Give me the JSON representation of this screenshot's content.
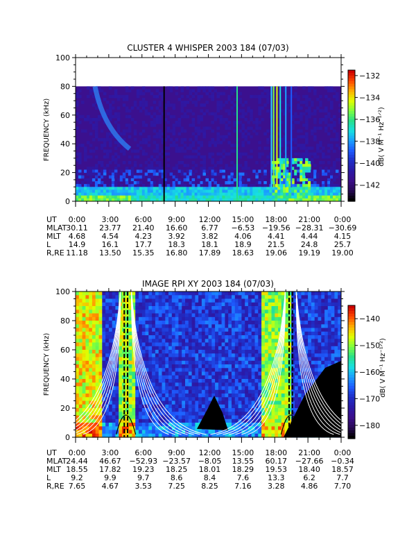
{
  "chart_data": [
    {
      "type": "heatmap",
      "title": "CLUSTER 4 WHISPER 2003 184 (07/03)",
      "ylabel": "FREQUENCY (kHz)",
      "ylim": [
        0,
        100
      ],
      "yticks": [
        "0",
        "20",
        "40",
        "60",
        "80",
        "100"
      ],
      "y_values": [
        0,
        20,
        40,
        60,
        80,
        100
      ],
      "data_ceiling_khz": 80,
      "colorbar": {
        "label": "dB( V M⁻¹ Hz⁻¹ᐟ²)",
        "range": [
          -143.5,
          -131.5
        ],
        "ticks": [
          "-132",
          "-134",
          "-136",
          "-138",
          "-140",
          "-142"
        ],
        "tick_values": [
          -132,
          -134,
          -136,
          -138,
          -140,
          -142
        ],
        "colormap": [
          "#000000",
          "#2a0a5a",
          "#3c0f8c",
          "#2b1aa8",
          "#1f2fc8",
          "#1e5cff",
          "#1aa0ff",
          "#17e0e0",
          "#27e08a",
          "#7dff40",
          "#e0ff00",
          "#ffb000",
          "#ff4800",
          "#cc0000"
        ]
      },
      "ephemeris": {
        "row_labels": [
          "UT",
          "MLAT",
          "MLT",
          "L",
          "R,RE"
        ],
        "columns": [
          [
            "0:00",
            "30.11",
            "4.68",
            "14.9",
            "11.18"
          ],
          [
            "3:00",
            "23.77",
            "4.54",
            "16.1",
            "13.50"
          ],
          [
            "6:00",
            "21.40",
            "4.23",
            "17.7",
            "15.35"
          ],
          [
            "9:00",
            "16.60",
            "3.92",
            "18.3",
            "16.80"
          ],
          [
            "12:00",
            "6.77",
            "3.82",
            "18.1",
            "17.89"
          ],
          [
            "15:00",
            "-6.53",
            "4.06",
            "18.9",
            "18.63"
          ],
          [
            "18:00",
            "-19.56",
            "4.41",
            "21.5",
            "19.06"
          ],
          [
            "21:00",
            "-28.31",
            "4.44",
            "24.8",
            "19.19"
          ],
          [
            "0:00",
            "-30.69",
            "4.15",
            "25.7",
            "19.00"
          ]
        ]
      }
    },
    {
      "type": "heatmap",
      "title": "IMAGE RPI XY 2003 184 (07/03)",
      "ylabel": "FREQUENCY (kHz)",
      "ylim": [
        0,
        100
      ],
      "yticks": [
        "0",
        "20",
        "40",
        "60",
        "80",
        "100"
      ],
      "y_values": [
        0,
        20,
        40,
        60,
        80,
        100
      ],
      "colorbar": {
        "label": "dB( V M⁻¹ Hz⁻¹ᐟ²)",
        "range": [
          -185,
          -135
        ],
        "ticks": [
          "-140",
          "-150",
          "-160",
          "-170",
          "-180"
        ],
        "tick_values": [
          -140,
          -150,
          -160,
          -170,
          -180
        ],
        "colormap": [
          "#000000",
          "#2a0a5a",
          "#3c0f8c",
          "#2b1aa8",
          "#1f2fc8",
          "#1e5cff",
          "#1aa0ff",
          "#17e0e0",
          "#27e08a",
          "#7dff40",
          "#e0ff00",
          "#ffb000",
          "#ff4800",
          "#cc0000"
        ]
      },
      "ephemeris": {
        "row_labels": [
          "UT",
          "MLAT",
          "MLT",
          "L",
          "R,RE"
        ],
        "columns": [
          [
            "0:00",
            "24.44",
            "18.55",
            "9.2",
            "7.65"
          ],
          [
            "3:00",
            "46.67",
            "17.82",
            "9.9",
            "4.67"
          ],
          [
            "6:00",
            "-52.93",
            "19.23",
            "9.7",
            "3.53"
          ],
          [
            "9:00",
            "-23.57",
            "18.25",
            "8.6",
            "7.25"
          ],
          [
            "12:00",
            "-8.05",
            "18.01",
            "8.4",
            "8.25"
          ],
          [
            "15:00",
            "13.55",
            "18.29",
            "7.6",
            "7.16"
          ],
          [
            "18:00",
            "60.17",
            "19.53",
            "13.3",
            "3.28"
          ],
          [
            "21:00",
            "-27.66",
            "18.40",
            "6.2",
            "4.86"
          ],
          [
            "0:00",
            "-0.34",
            "18.57",
            "7.7",
            "7.70"
          ]
        ]
      }
    }
  ]
}
